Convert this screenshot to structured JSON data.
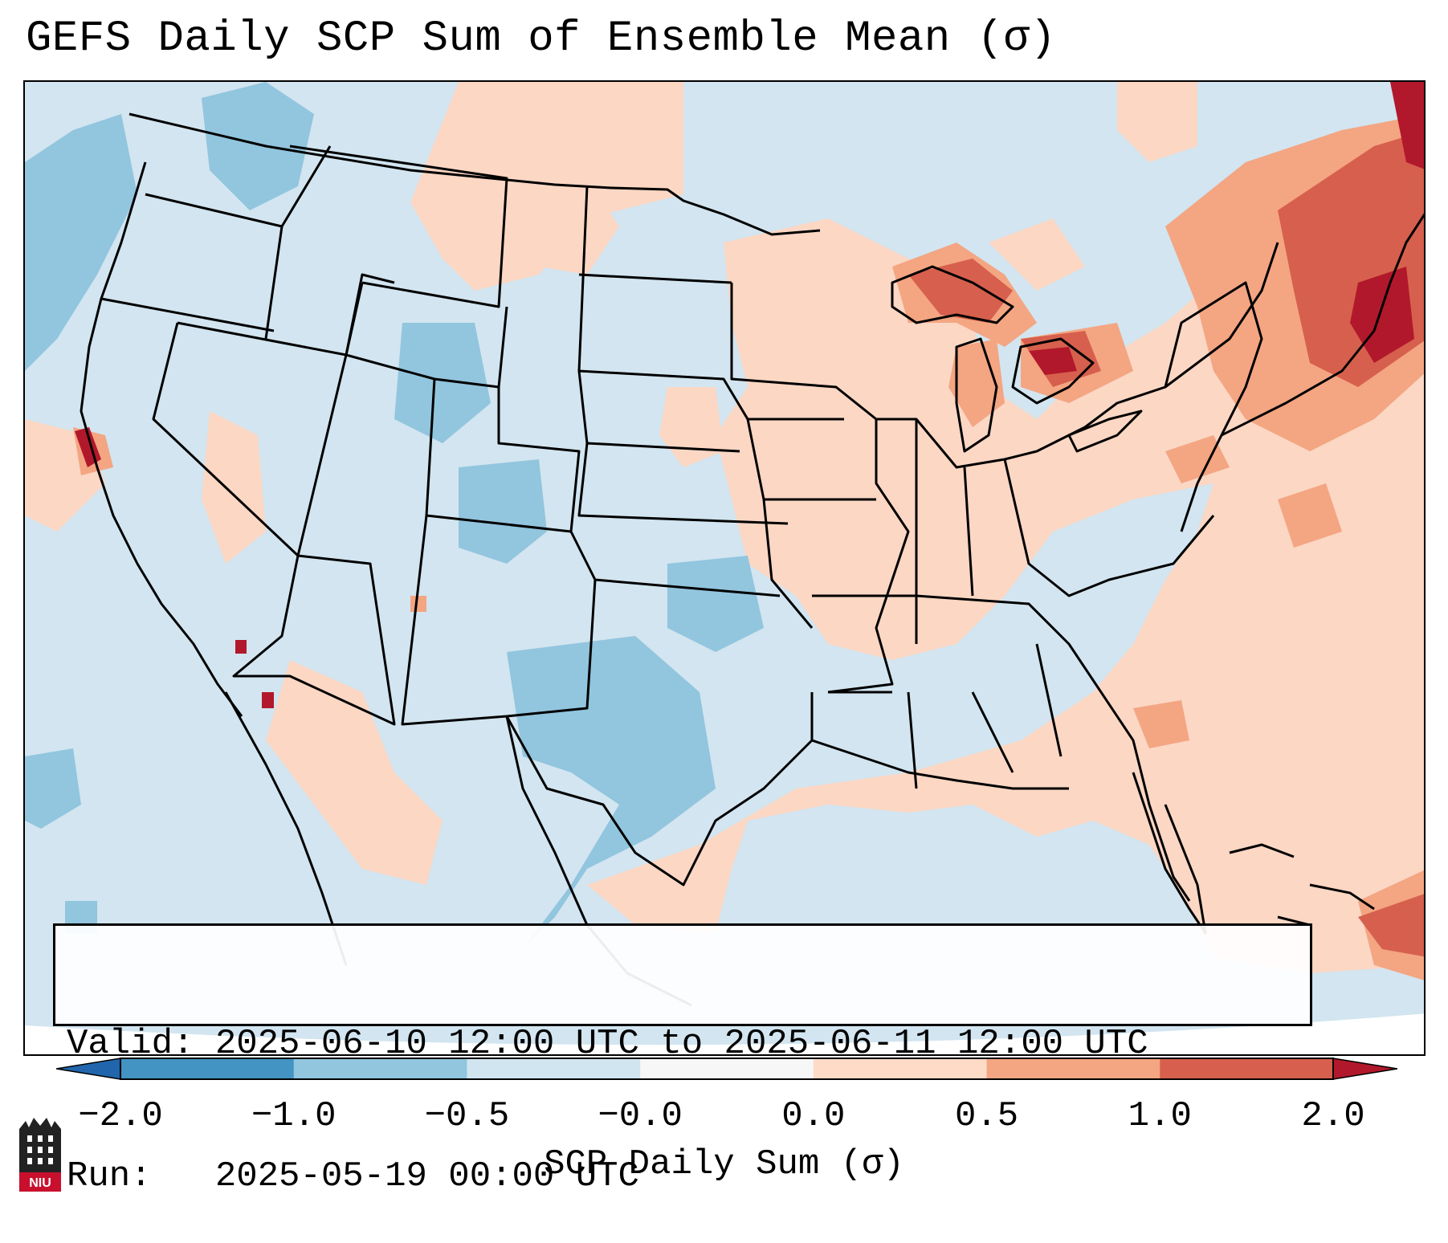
{
  "title": "GEFS Daily SCP Sum of Ensemble Mean (σ)",
  "info": {
    "valid_label": "Valid:",
    "valid_value": "2025-06-10 12:00 UTC to 2025-06-11 12:00 UTC",
    "run_label": "Run:",
    "run_value": "2025-05-19 00:00 UTC"
  },
  "colorbar": {
    "label": "SCP Daily Sum (σ)",
    "ticks": [
      "−2.0",
      "−1.0",
      "−0.5",
      "−0.0",
      "0.0",
      "0.5",
      "1.0",
      "2.0"
    ],
    "colors": [
      "#4393c3",
      "#92c5de",
      "#d1e5f0",
      "#f7f7f7",
      "#fddbc7",
      "#f4a582",
      "#d6604d",
      "#b2182b"
    ],
    "extend_low_color": "#2166ac",
    "extend_high_color": "#b2182b"
  },
  "map": {
    "projection": "Lambert Conformal, CONUS",
    "background_color": "#d2e5f0",
    "field": "SCP daily sum anomaly (sigma)"
  },
  "logo": {
    "text": "NIU",
    "color": "#c8102e"
  }
}
